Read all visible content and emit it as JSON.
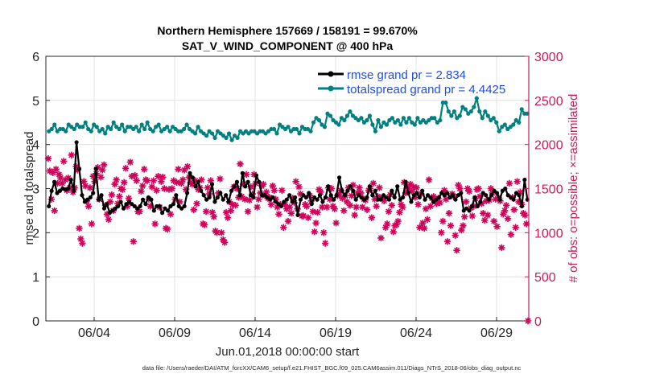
{
  "chart_data": {
    "type": "line",
    "title_line1": "Northern Hemisphere 157669 / 158191 = 99.670%",
    "title_line2": "SAT_V_WIND_COMPONENT @ 400 hPa",
    "xlabel": "Jun.01,2018 00:00:00 start",
    "ylabel_left": "rmse and totalspread",
    "ylabel_right": "# of obs: o=possible; ×=assimilated",
    "footer": "data file: /Users/raeder/DAI/ATM_forcXX/CAM6_setup/f.e21.FHIST_BGC.f09_025.CAM6assim.011/Diags_NTrS_2018-06/obs_diag_output.nc",
    "x_range": [
      0.5,
      30.5
    ],
    "x_ticks": [
      3.5,
      8.5,
      13.5,
      18.5,
      23.5,
      28.5
    ],
    "x_tick_labels": [
      "06/04",
      "06/09",
      "06/14",
      "06/19",
      "06/24",
      "06/29"
    ],
    "y_left_range": [
      0,
      6
    ],
    "y_left_ticks": [
      "0",
      "1",
      "2",
      "3",
      "4",
      "5",
      "6"
    ],
    "y_right_range": [
      0,
      3000
    ],
    "y_right_ticks": [
      "0",
      "500",
      "1000",
      "1500",
      "2000",
      "2500",
      "3000"
    ],
    "grid": true,
    "legend_position": "top-right",
    "colors": {
      "rmse": "#000000",
      "spread": "#008080",
      "obs": "#d1005a",
      "right_axis": "#c71c5c"
    },
    "series": [
      {
        "name": "rmse grand pr = 2.834",
        "key": "rmse",
        "values": [
          2.6,
          2.95,
          3.15,
          2.9,
          2.95,
          3.0,
          2.98,
          3.0,
          3.2,
          2.95,
          4.05,
          3.45,
          2.85,
          2.7,
          2.75,
          2.8,
          2.9,
          3.45,
          2.75,
          2.85,
          2.55,
          2.65,
          2.45,
          2.5,
          2.55,
          2.6,
          2.7,
          2.55,
          2.65,
          2.7,
          2.65,
          2.6,
          2.55,
          2.6,
          2.75,
          2.65,
          2.8,
          2.75,
          2.5,
          2.6,
          2.6,
          2.45,
          2.55,
          2.5,
          2.6,
          2.65,
          2.85,
          2.6,
          2.55,
          2.6,
          2.9,
          3.35,
          3.25,
          3.05,
          3.15,
          2.95,
          2.85,
          2.75,
          2.8,
          3.1,
          2.7,
          2.8,
          2.9,
          2.75,
          2.85,
          2.7,
          2.95,
          3.05,
          3.15,
          2.85,
          3.35,
          3.05,
          3.15,
          2.85,
          2.8,
          3.3,
          3.15,
          2.85,
          2.85,
          2.8,
          2.75,
          2.8,
          2.7,
          2.65,
          2.6,
          2.7,
          2.75,
          2.85,
          2.7,
          2.8,
          2.4,
          2.75,
          2.85,
          2.8,
          2.9,
          2.65,
          2.8,
          2.75,
          2.85,
          2.7,
          2.8,
          3.05,
          2.85,
          2.75,
          2.85,
          3.25,
          2.95,
          2.85,
          2.95,
          3.05,
          2.95,
          2.75,
          2.85,
          2.8,
          2.75,
          2.8,
          3.05,
          2.85,
          2.95,
          2.75,
          2.75,
          2.85,
          2.8,
          2.75,
          2.95,
          2.8,
          3.05,
          2.75,
          2.8,
          3.15,
          2.9,
          2.7,
          2.85,
          2.9,
          2.8,
          2.95,
          2.75,
          2.85,
          2.8,
          2.7,
          2.75,
          2.8,
          2.9,
          2.85,
          2.9,
          2.8,
          2.85,
          2.75,
          2.85,
          2.9,
          2.5,
          2.55,
          2.5,
          2.6,
          2.8,
          2.6,
          2.7,
          2.9,
          2.85,
          2.75,
          2.85,
          2.95,
          2.9,
          2.75,
          2.95,
          3.0,
          2.85,
          2.8,
          2.75,
          2.9,
          2.85,
          2.6,
          3.2,
          2.75
        ]
      },
      {
        "name": "totalspread grand pr = 4.4425",
        "key": "spread",
        "values": [
          4.3,
          4.35,
          4.45,
          4.3,
          4.35,
          4.35,
          4.3,
          4.45,
          4.4,
          4.35,
          4.45,
          4.4,
          4.4,
          4.5,
          4.35,
          4.3,
          4.45,
          4.4,
          4.3,
          4.35,
          4.25,
          4.4,
          4.35,
          4.5,
          4.4,
          4.35,
          4.45,
          4.3,
          4.4,
          4.4,
          4.35,
          4.4,
          4.3,
          4.45,
          4.35,
          4.5,
          4.35,
          4.3,
          4.4,
          4.45,
          4.3,
          4.35,
          4.4,
          4.3,
          4.4,
          4.35,
          4.3,
          4.3,
          4.35,
          4.45,
          4.35,
          4.3,
          4.25,
          4.4,
          4.3,
          4.25,
          4.2,
          4.3,
          4.25,
          4.15,
          4.3,
          4.25,
          4.2,
          4.15,
          4.25,
          4.1,
          4.2,
          4.15,
          4.3,
          4.25,
          4.3,
          4.25,
          4.3,
          4.3,
          4.25,
          4.3,
          4.3,
          4.25,
          4.3,
          4.35,
          4.35,
          4.25,
          4.45,
          4.4,
          4.35,
          4.4,
          4.3,
          4.35,
          4.35,
          4.25,
          4.4,
          4.35,
          4.35,
          4.3,
          4.5,
          4.6,
          4.55,
          4.45,
          4.4,
          4.7,
          4.65,
          4.55,
          4.5,
          4.45,
          4.6,
          4.55,
          4.65,
          4.75,
          4.65,
          4.6,
          4.55,
          4.6,
          4.5,
          4.55,
          4.65,
          4.45,
          4.3,
          4.55,
          4.4,
          4.5,
          4.45,
          4.55,
          4.6,
          4.5,
          4.55,
          4.45,
          4.6,
          4.5,
          4.6,
          4.5,
          4.45,
          4.6,
          4.5,
          4.55,
          4.5,
          4.55,
          4.6,
          4.6,
          4.5,
          4.55,
          4.95,
          4.95,
          4.75,
          4.65,
          4.75,
          4.6,
          4.65,
          4.85,
          4.8,
          4.7,
          4.75,
          4.85,
          5.05,
          4.75,
          4.6,
          4.75,
          4.65,
          4.55,
          4.6,
          4.5,
          4.3,
          4.4,
          4.45,
          4.35,
          4.4,
          4.45,
          4.55,
          4.5,
          4.8,
          4.7,
          4.7
        ]
      },
      {
        "name": "obs assimilated",
        "key": "obs",
        "axis": "right",
        "values": [
          1840,
          1700,
          1380,
          1680,
          1250,
          1720,
          1560,
          1660,
          1620,
          1560,
          1810,
          1600,
          1480,
          1620,
          1510,
          1880,
          1460,
          1510,
          1750,
          1710,
          1050,
          930,
          880,
          1580,
          1530,
          1360,
          1300,
          1510,
          1100,
          1640,
          1580,
          1670,
          1740,
          1380,
          1630,
          1710,
          1770,
          1310,
          1210,
          1150,
          1350,
          1430,
          1250,
          1550,
          1600,
          1330,
          1410,
          1500,
          1490,
          1570,
          1730,
          1300,
          1390,
          1800,
          1640,
          900,
          1650,
          1590,
          1240,
          1240,
          1470,
          1530,
          1720,
          1600,
          1590,
          1380,
          1300,
          1520,
          1590,
          1100,
          1480,
          1640,
          1290,
          1580,
          1630,
          1500,
          1050,
          1040,
          1490,
          1210,
          1500,
          1590,
          1380,
          1570,
          1720,
          1350,
          1560,
          1600,
          1710,
          1490,
          1750,
          1630,
          1570,
          1550,
          1260,
          1590,
          1330,
          1490,
          1510,
          1600,
          1100,
          1090,
          1240,
          1510,
          1440,
          1590,
          1230,
          1180,
          1020,
          1000,
          1450,
          1610,
          1000,
          920,
          890,
          1230,
          1170,
          1350,
          1250,
          1320,
          1520,
          1310,
          1500,
          1400,
          1780,
          1410,
          1550,
          1380,
          1660,
          1240,
          1370,
          1520,
          1440,
          1660,
          1560,
          1290,
          1380,
          1450,
          1530,
          1550,
          1420,
          1460,
          1390,
          1400,
          1320,
          1530,
          1480,
          1380,
          1290,
          1210,
          1320,
          1480,
          1060,
          1320,
          1270,
          1130,
          1290,
          1220,
          1390,
          1340,
          1580,
          1270,
          1520,
          1440,
          1190,
          1190,
          1320,
          1300,
          1170,
          1420,
          1360,
          1240,
          1010,
          1110,
          1230,
          1490,
          1460,
          1290,
          1000,
          880,
          1290,
          1510,
          1380,
          1500,
          1300,
          1270,
          1110,
          1420,
          1440,
          1480,
          1390,
          1250,
          1420,
          1350,
          1510,
          1310,
          1420,
          1540,
          1200,
          1290,
          1450,
          1510,
          1450,
          1290,
          1380,
          1370,
          1260,
          1480,
          1500,
          1170,
          1560,
          1380,
          1300,
          1410,
          1510,
          940,
          1400,
          1360,
          1060,
          1100,
          1240,
          1430,
          1310,
          1010,
          1080,
          1090,
          1130,
          1230,
          1320,
          1290,
          1570,
          1450,
          1520,
          1500,
          1550,
          1470,
          1520,
          1400,
          1510,
          1320,
          1060,
          1440,
          1110,
          1050,
          1270,
          1150,
          1600,
          1300,
          1390,
          1410,
          1380,
          1330,
          1390,
          1340,
          1000,
          1130,
          1480,
          1380,
          900,
          1220,
          1080,
          1440,
          1410,
          970,
          800,
          1540,
          1500,
          1030,
          1080,
          1180,
          1350,
          1500,
          1470,
          1280,
          1190,
          1300,
          1390,
          1490,
          1500,
          1410,
          1330,
          1220,
          1140,
          1360,
          1200,
          1370,
          1500,
          1450,
          1130,
          1380,
          1070,
          1400,
          1360,
          830,
          1210,
          1250,
          1310,
          1160,
          1560,
          980,
          1400,
          1260,
          1060,
          1580,
          1350,
          1460,
          1320,
          1220,
          1200,
          1100,
          0
        ]
      }
    ]
  }
}
